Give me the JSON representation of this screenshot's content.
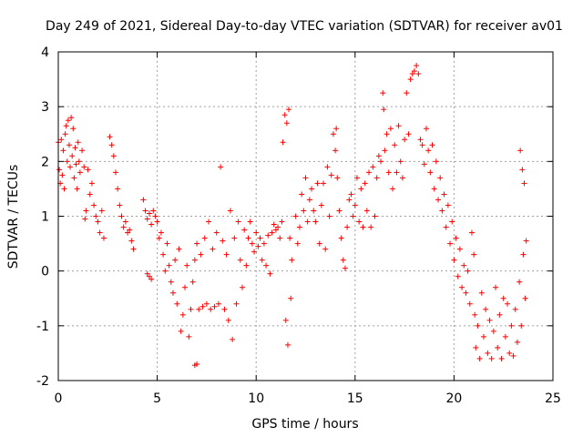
{
  "chart_data": {
    "type": "scatter",
    "title": "Day 249 of 2021, Sidereal Day-to-day VTEC variation (SDTVAR) for receiver av01",
    "xlabel": "GPS time / hours",
    "ylabel": "SDTVAR / TECUs",
    "xlim": [
      0,
      25
    ],
    "ylim": [
      -2,
      4
    ],
    "xticks": [
      "0",
      "5",
      "10",
      "15",
      "20",
      "25"
    ],
    "yticks": [
      "-2",
      "-1",
      "0",
      "1",
      "2",
      "3",
      "4"
    ],
    "grid": true,
    "marker": "+",
    "color": "#ff0000",
    "series": [
      {
        "name": "SDTVAR",
        "points": [
          [
            0.0,
            2.35
          ],
          [
            0.05,
            1.85
          ],
          [
            0.1,
            1.6
          ],
          [
            0.15,
            2.4
          ],
          [
            0.2,
            1.75
          ],
          [
            0.25,
            2.2
          ],
          [
            0.3,
            1.5
          ],
          [
            0.35,
            2.5
          ],
          [
            0.4,
            2.65
          ],
          [
            0.45,
            2.0
          ],
          [
            0.5,
            2.75
          ],
          [
            0.55,
            2.3
          ],
          [
            0.6,
            1.9
          ],
          [
            0.65,
            2.8
          ],
          [
            0.7,
            2.1
          ],
          [
            0.75,
            2.6
          ],
          [
            0.8,
            1.7
          ],
          [
            0.85,
            2.25
          ],
          [
            0.9,
            1.95
          ],
          [
            0.95,
            1.5
          ],
          [
            1.0,
            2.35
          ],
          [
            1.05,
            2.0
          ],
          [
            1.1,
            1.8
          ],
          [
            1.2,
            2.2
          ],
          [
            1.3,
            1.9
          ],
          [
            1.35,
            0.95
          ],
          [
            1.4,
            1.1
          ],
          [
            1.5,
            1.85
          ],
          [
            1.6,
            1.4
          ],
          [
            1.7,
            1.6
          ],
          [
            1.8,
            1.2
          ],
          [
            1.9,
            1.0
          ],
          [
            2.0,
            0.9
          ],
          [
            2.1,
            0.7
          ],
          [
            2.2,
            1.1
          ],
          [
            2.3,
            0.6
          ],
          [
            2.6,
            2.45
          ],
          [
            2.7,
            2.3
          ],
          [
            2.8,
            2.1
          ],
          [
            2.9,
            1.8
          ],
          [
            3.0,
            1.5
          ],
          [
            3.1,
            1.2
          ],
          [
            3.2,
            1.0
          ],
          [
            3.3,
            0.8
          ],
          [
            3.4,
            0.9
          ],
          [
            3.5,
            0.7
          ],
          [
            3.6,
            0.75
          ],
          [
            3.7,
            0.55
          ],
          [
            3.8,
            0.4
          ],
          [
            4.3,
            1.3
          ],
          [
            4.4,
            1.1
          ],
          [
            4.5,
            0.95
          ],
          [
            4.6,
            1.05
          ],
          [
            4.7,
            0.85
          ],
          [
            4.8,
            1.1
          ],
          [
            4.9,
            1.0
          ],
          [
            4.5,
            -0.05
          ],
          [
            4.6,
            -0.1
          ],
          [
            4.7,
            -0.15
          ],
          [
            5.0,
            0.9
          ],
          [
            5.1,
            0.6
          ],
          [
            5.2,
            0.7
          ],
          [
            5.3,
            0.3
          ],
          [
            5.4,
            0.0
          ],
          [
            5.5,
            0.5
          ],
          [
            5.6,
            0.1
          ],
          [
            5.7,
            -0.2
          ],
          [
            5.8,
            -0.4
          ],
          [
            5.9,
            0.2
          ],
          [
            6.0,
            -0.6
          ],
          [
            6.1,
            0.4
          ],
          [
            6.2,
            -1.1
          ],
          [
            6.3,
            -0.8
          ],
          [
            6.4,
            -0.3
          ],
          [
            6.5,
            0.1
          ],
          [
            6.6,
            -1.2
          ],
          [
            6.7,
            -0.7
          ],
          [
            6.8,
            -0.2
          ],
          [
            6.9,
            -1.72
          ],
          [
            7.0,
            -1.7
          ],
          [
            6.9,
            0.2
          ],
          [
            7.0,
            0.5
          ],
          [
            7.1,
            -0.7
          ],
          [
            7.2,
            0.3
          ],
          [
            7.3,
            -0.65
          ],
          [
            7.4,
            0.6
          ],
          [
            7.5,
            -0.6
          ],
          [
            7.6,
            0.9
          ],
          [
            7.7,
            -0.7
          ],
          [
            7.8,
            0.4
          ],
          [
            7.9,
            -0.65
          ],
          [
            8.0,
            0.7
          ],
          [
            8.1,
            -0.6
          ],
          [
            8.2,
            1.9
          ],
          [
            8.3,
            0.55
          ],
          [
            8.4,
            -0.7
          ],
          [
            8.5,
            0.3
          ],
          [
            8.6,
            -0.9
          ],
          [
            8.7,
            1.1
          ],
          [
            8.8,
            -1.25
          ],
          [
            8.9,
            0.6
          ],
          [
            9.0,
            -0.6
          ],
          [
            9.1,
            0.9
          ],
          [
            9.2,
            0.2
          ],
          [
            9.3,
            -0.3
          ],
          [
            9.4,
            0.75
          ],
          [
            9.5,
            0.1
          ],
          [
            9.6,
            0.6
          ],
          [
            9.7,
            0.9
          ],
          [
            9.8,
            0.5
          ],
          [
            9.9,
            0.35
          ],
          [
            10.0,
            0.7
          ],
          [
            10.1,
            0.45
          ],
          [
            10.2,
            0.6
          ],
          [
            10.3,
            0.2
          ],
          [
            10.4,
            0.5
          ],
          [
            10.5,
            0.1
          ],
          [
            10.6,
            0.65
          ],
          [
            10.7,
            -0.05
          ],
          [
            10.8,
            0.7
          ],
          [
            10.9,
            0.85
          ],
          [
            11.0,
            0.75
          ],
          [
            11.1,
            0.8
          ],
          [
            11.2,
            0.6
          ],
          [
            11.3,
            0.9
          ],
          [
            11.35,
            2.35
          ],
          [
            11.45,
            2.85
          ],
          [
            11.5,
            -0.9
          ],
          [
            11.55,
            2.7
          ],
          [
            11.6,
            -1.35
          ],
          [
            11.65,
            2.95
          ],
          [
            11.7,
            0.6
          ],
          [
            11.75,
            -0.5
          ],
          [
            11.8,
            0.2
          ],
          [
            12.0,
            1.0
          ],
          [
            12.1,
            0.5
          ],
          [
            12.2,
            0.8
          ],
          [
            12.3,
            1.4
          ],
          [
            12.4,
            1.1
          ],
          [
            12.5,
            1.7
          ],
          [
            12.6,
            0.9
          ],
          [
            12.7,
            1.3
          ],
          [
            12.8,
            1.5
          ],
          [
            12.9,
            1.1
          ],
          [
            13.0,
            0.9
          ],
          [
            13.1,
            1.6
          ],
          [
            13.2,
            0.5
          ],
          [
            13.3,
            1.2
          ],
          [
            13.4,
            1.6
          ],
          [
            13.5,
            0.4
          ],
          [
            13.6,
            1.9
          ],
          [
            13.7,
            1.0
          ],
          [
            13.8,
            1.75
          ],
          [
            13.9,
            2.5
          ],
          [
            14.0,
            2.2
          ],
          [
            14.05,
            2.6
          ],
          [
            14.1,
            1.7
          ],
          [
            14.2,
            1.1
          ],
          [
            14.3,
            0.6
          ],
          [
            14.4,
            0.2
          ],
          [
            14.5,
            0.05
          ],
          [
            14.6,
            0.8
          ],
          [
            14.7,
            1.3
          ],
          [
            14.8,
            1.4
          ],
          [
            14.9,
            1.0
          ],
          [
            15.0,
            1.2
          ],
          [
            15.1,
            1.7
          ],
          [
            15.2,
            0.9
          ],
          [
            15.3,
            1.5
          ],
          [
            15.4,
            0.8
          ],
          [
            15.5,
            1.6
          ],
          [
            15.6,
            1.1
          ],
          [
            15.7,
            1.8
          ],
          [
            15.8,
            0.8
          ],
          [
            15.9,
            1.9
          ],
          [
            16.0,
            1.0
          ],
          [
            16.1,
            1.7
          ],
          [
            16.2,
            2.1
          ],
          [
            16.3,
            2.0
          ],
          [
            16.4,
            3.25
          ],
          [
            16.45,
            2.95
          ],
          [
            16.5,
            2.2
          ],
          [
            16.6,
            2.5
          ],
          [
            16.7,
            1.8
          ],
          [
            16.8,
            2.6
          ],
          [
            16.9,
            1.5
          ],
          [
            17.0,
            2.3
          ],
          [
            17.1,
            1.8
          ],
          [
            17.2,
            2.65
          ],
          [
            17.3,
            2.0
          ],
          [
            17.4,
            1.7
          ],
          [
            17.5,
            2.4
          ],
          [
            17.6,
            3.25
          ],
          [
            17.7,
            2.5
          ],
          [
            17.8,
            3.5
          ],
          [
            17.9,
            3.6
          ],
          [
            18.0,
            3.65
          ],
          [
            18.1,
            3.75
          ],
          [
            18.2,
            3.6
          ],
          [
            18.3,
            2.4
          ],
          [
            18.4,
            2.3
          ],
          [
            18.5,
            1.95
          ],
          [
            18.6,
            2.6
          ],
          [
            18.7,
            2.2
          ],
          [
            18.8,
            1.8
          ],
          [
            18.9,
            2.3
          ],
          [
            19.0,
            1.5
          ],
          [
            19.1,
            2.0
          ],
          [
            19.2,
            1.3
          ],
          [
            19.3,
            1.7
          ],
          [
            19.4,
            1.1
          ],
          [
            19.5,
            1.4
          ],
          [
            19.6,
            0.8
          ],
          [
            19.7,
            1.2
          ],
          [
            19.8,
            0.5
          ],
          [
            19.9,
            0.9
          ],
          [
            20.0,
            0.2
          ],
          [
            20.1,
            0.6
          ],
          [
            20.2,
            -0.1
          ],
          [
            20.3,
            0.4
          ],
          [
            20.4,
            -0.3
          ],
          [
            20.5,
            0.1
          ],
          [
            20.6,
            -0.4
          ],
          [
            20.7,
            0.0
          ],
          [
            20.8,
            -0.6
          ],
          [
            20.9,
            0.7
          ],
          [
            21.0,
            0.3
          ],
          [
            21.05,
            -0.8
          ],
          [
            21.1,
            -1.4
          ],
          [
            21.2,
            -1.0
          ],
          [
            21.3,
            -1.6
          ],
          [
            21.4,
            -0.4
          ],
          [
            21.5,
            -1.2
          ],
          [
            21.6,
            -0.7
          ],
          [
            21.7,
            -1.5
          ],
          [
            21.8,
            -0.9
          ],
          [
            21.9,
            -1.6
          ],
          [
            22.0,
            -1.1
          ],
          [
            22.1,
            -0.3
          ],
          [
            22.2,
            -1.4
          ],
          [
            22.3,
            -0.8
          ],
          [
            22.4,
            -1.6
          ],
          [
            22.5,
            -0.5
          ],
          [
            22.6,
            -1.2
          ],
          [
            22.7,
            -0.6
          ],
          [
            22.8,
            -1.5
          ],
          [
            22.9,
            -1.0
          ],
          [
            23.0,
            -1.55
          ],
          [
            23.1,
            -0.7
          ],
          [
            23.2,
            -1.3
          ],
          [
            23.3,
            -0.2
          ],
          [
            23.35,
            2.2
          ],
          [
            23.4,
            -1.0
          ],
          [
            23.45,
            1.85
          ],
          [
            23.5,
            0.3
          ],
          [
            23.55,
            1.6
          ],
          [
            23.6,
            -0.5
          ],
          [
            23.65,
            0.55
          ]
        ]
      }
    ]
  }
}
